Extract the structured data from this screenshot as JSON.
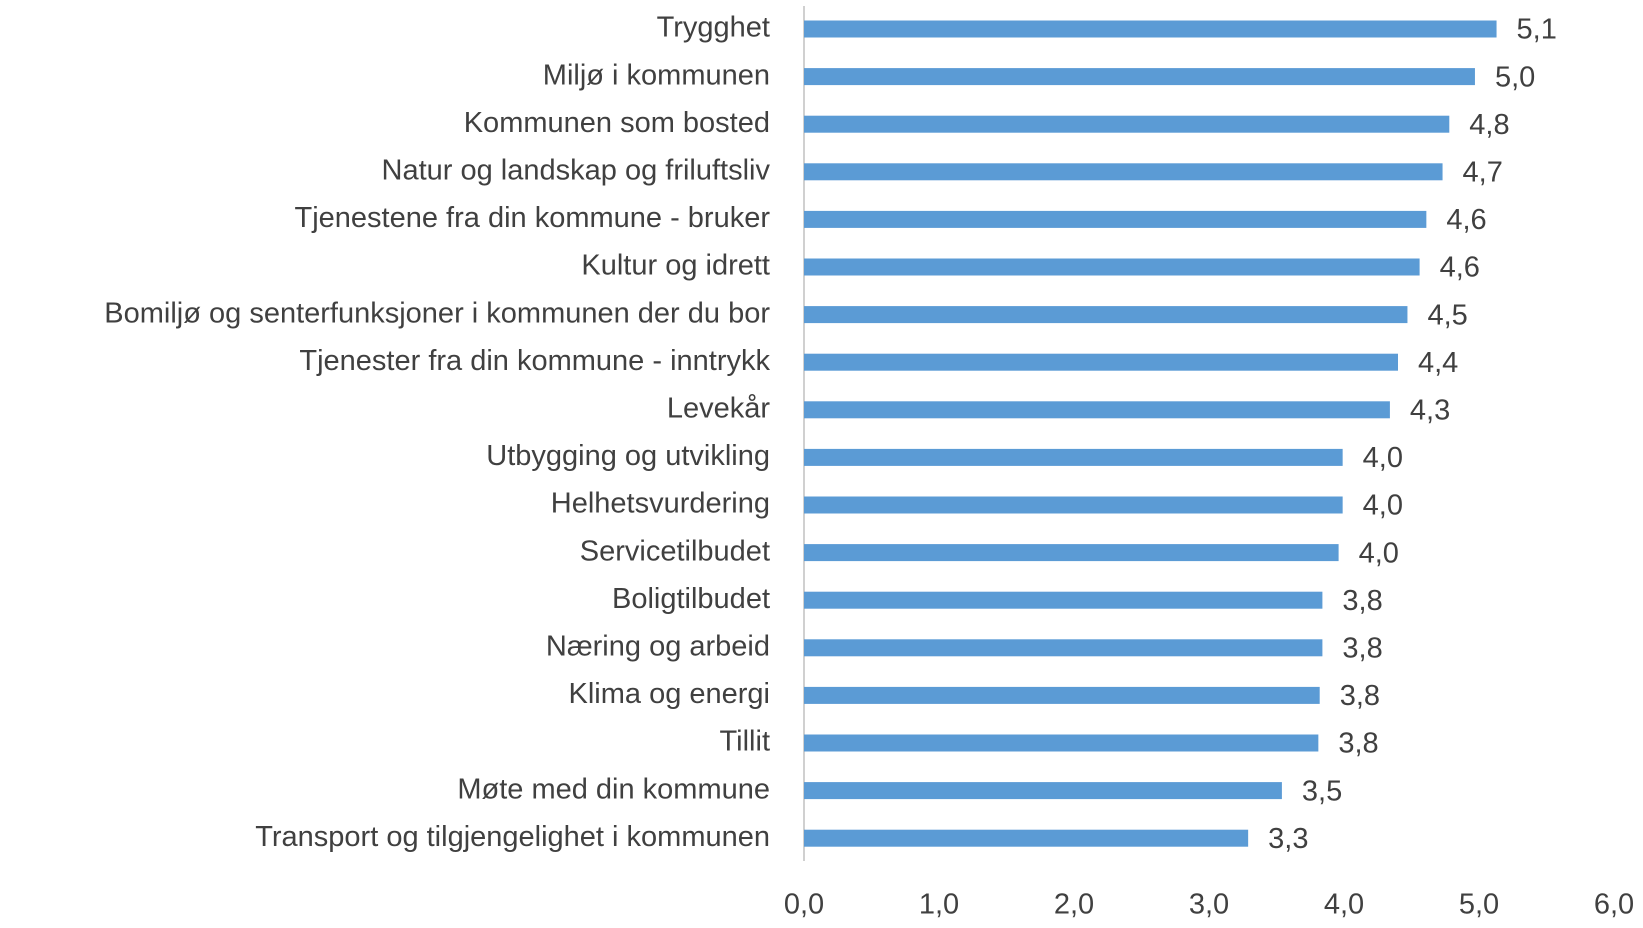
{
  "chart_data": {
    "type": "hbar",
    "categories": [
      "Trygghet",
      "Miljø i kommunen",
      "Kommunen som bosted",
      "Natur og landskap og friluftsliv",
      "Tjenestene fra din kommune - bruker",
      "Kultur og idrett",
      "Bomiljø og senterfunksjoner i kommunen der du bor",
      "Tjenester fra din kommune - inntrykk",
      "Levekår",
      "Utbygging og utvikling",
      "Helhetsvurdering",
      "Servicetilbudet",
      "Boligtilbudet",
      "Næring og arbeid",
      "Klima og energi",
      "Tillit",
      "Møte med din kommune",
      "Transport og tilgjengelighet i kommunen"
    ],
    "values": [
      5.13,
      4.97,
      4.78,
      4.73,
      4.61,
      4.56,
      4.47,
      4.4,
      4.34,
      3.99,
      3.99,
      3.96,
      3.84,
      3.84,
      3.82,
      3.81,
      3.54,
      3.29
    ],
    "value_labels": [
      "5,1",
      "5,0",
      "4,8",
      "4,7",
      "4,6",
      "4,6",
      "4,5",
      "4,4",
      "4,3",
      "4,0",
      "4,0",
      "4,0",
      "3,8",
      "3,8",
      "3,8",
      "3,8",
      "3,5",
      "3,3"
    ],
    "color": "#5b9bd5",
    "xlim": [
      0,
      6
    ],
    "xticks": [
      {
        "value": 0,
        "label": "0,0"
      },
      {
        "value": 1,
        "label": "1,0"
      },
      {
        "value": 2,
        "label": "2,0"
      },
      {
        "value": 3,
        "label": "3,0"
      },
      {
        "value": 4,
        "label": "4,0"
      },
      {
        "value": 5,
        "label": "5,0"
      },
      {
        "value": 6,
        "label": "6,0"
      }
    ]
  }
}
